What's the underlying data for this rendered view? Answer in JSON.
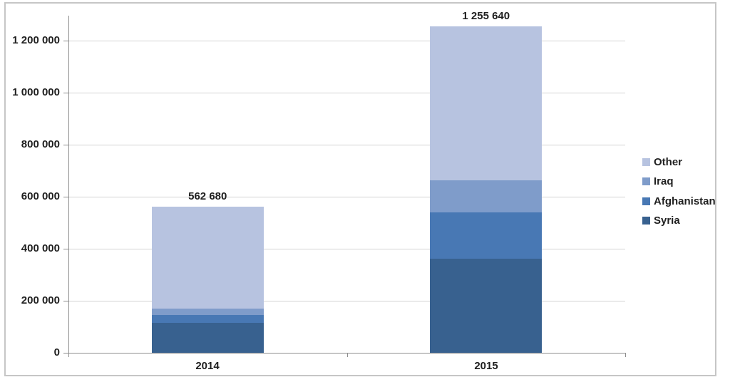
{
  "chart_data": {
    "type": "bar",
    "stacked": true,
    "title": "",
    "xlabel": "",
    "ylabel": "",
    "categories": [
      "2014",
      "2015"
    ],
    "series": [
      {
        "name": "Syria",
        "color": "#38618f",
        "values": [
          115000,
          362800
        ]
      },
      {
        "name": "Afghanistan",
        "color": "#4878b4",
        "values": [
          30000,
          178200
        ]
      },
      {
        "name": "Iraq",
        "color": "#7f9cca",
        "values": [
          25000,
          121500
        ]
      },
      {
        "name": "Other",
        "color": "#b7c3e0",
        "values": [
          392680,
          593140
        ]
      }
    ],
    "totals": [
      562680,
      1255640
    ],
    "total_labels": [
      "562 680",
      "1 255 640"
    ],
    "y_axis": {
      "min": 0,
      "max": 1200000,
      "tick_interval": 200000,
      "tick_labels": [
        "1 200 000",
        "1 000 000",
        "800 000",
        "600 000",
        "400 000",
        "200 000",
        "0"
      ]
    },
    "grid": "horizontal",
    "legend_position": "right",
    "legend": [
      {
        "label": "Other",
        "color": "#b7c3e0"
      },
      {
        "label": "Iraq",
        "color": "#7f9cca"
      },
      {
        "label": "Afghanistan",
        "color": "#4878b4"
      },
      {
        "label": "Syria",
        "color": "#38618f"
      }
    ]
  }
}
